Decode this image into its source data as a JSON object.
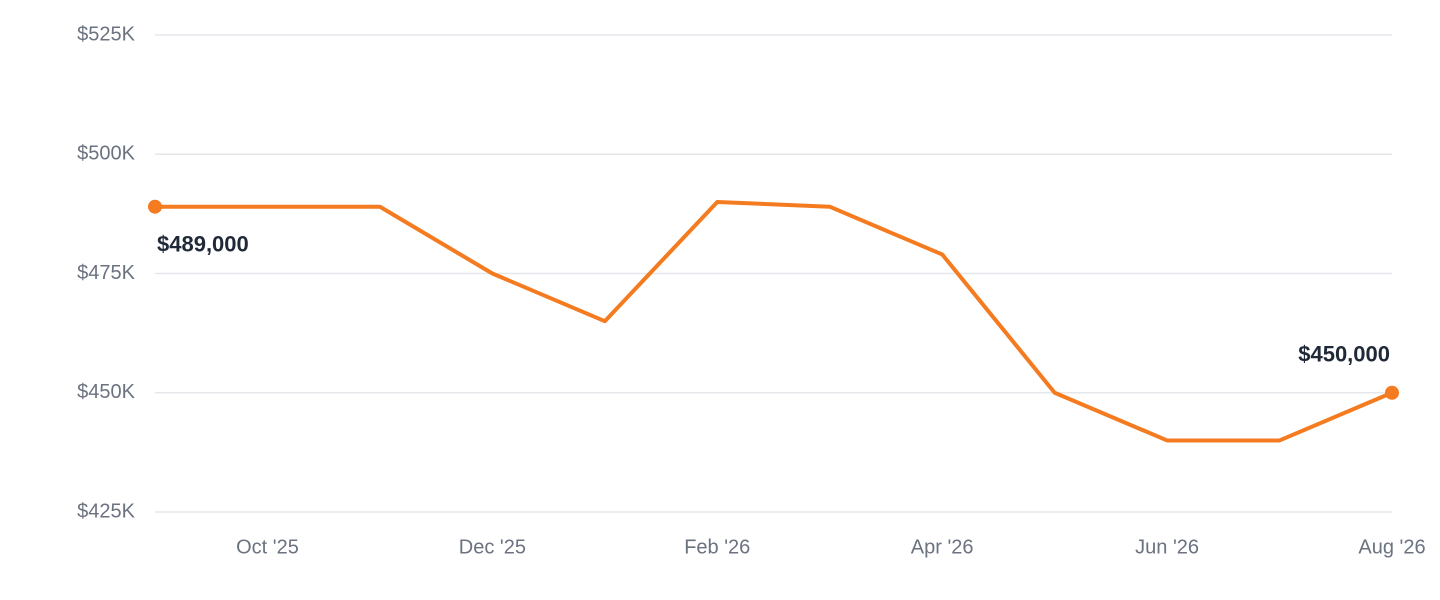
{
  "chart_data": {
    "type": "line",
    "categories": [
      null,
      "Oct '25",
      null,
      "Dec '25",
      null,
      "Feb '26",
      null,
      "Apr '26",
      null,
      "Jun '26",
      null,
      "Aug '26"
    ],
    "series": [
      {
        "color": "#f47b20",
        "values": [
          489000,
          489000,
          489000,
          475000,
          465000,
          490000,
          489000,
          479000,
          450000,
          440000,
          440000,
          450000
        ],
        "value_labels": [
          "$489,000",
          null,
          null,
          null,
          null,
          null,
          null,
          null,
          null,
          null,
          null,
          "$450,000"
        ]
      }
    ],
    "ylim": [
      425000,
      525000
    ],
    "yticks": [
      {
        "value": 425000,
        "label": "$425K"
      },
      {
        "value": 450000,
        "label": "$450K"
      },
      {
        "value": 475000,
        "label": "$475K"
      },
      {
        "value": 500000,
        "label": "$500K"
      },
      {
        "value": 525000,
        "label": "$525K"
      }
    ],
    "grid": true
  }
}
